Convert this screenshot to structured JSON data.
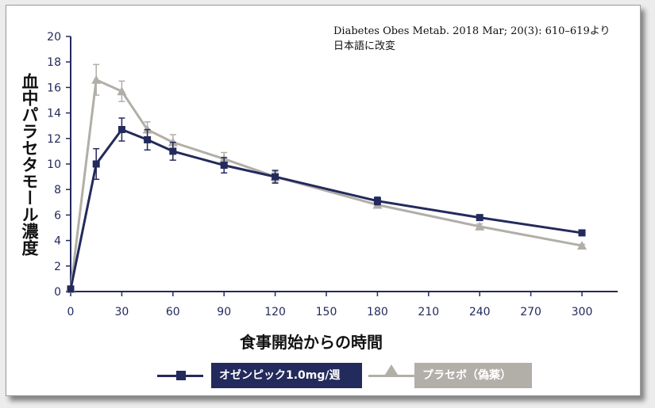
{
  "citation": "Diabetes Obes Metab. 2018 Mar; 20(3): 610–619より\n日本語に改変",
  "colors": {
    "navy": "#232a5c",
    "gray": "#b2aea8",
    "axis": "#232a5c",
    "tick_text": "#232a5c"
  },
  "chart_data": {
    "type": "line",
    "xlabel": "食事開始からの時間",
    "ylabel": "血中パラセタモール濃度",
    "x_ticks": [
      0,
      30,
      60,
      90,
      120,
      150,
      180,
      210,
      240,
      270,
      300
    ],
    "y_ticks": [
      0,
      2,
      4,
      6,
      8,
      10,
      12,
      14,
      16,
      18,
      20
    ],
    "xlim": [
      0,
      300
    ],
    "ylim": [
      0,
      20
    ],
    "grid": false,
    "legend_position": "bottom",
    "series": [
      {
        "name": "オゼンピック1.0mg/週",
        "color": "#232a5c",
        "marker": "square",
        "points": [
          {
            "x": 0,
            "y": 0.2,
            "err": 0
          },
          {
            "x": 15,
            "y": 10.0,
            "err": 1.2
          },
          {
            "x": 30,
            "y": 12.7,
            "err": 0.9
          },
          {
            "x": 45,
            "y": 11.9,
            "err": 0.8
          },
          {
            "x": 60,
            "y": 11.0,
            "err": 0.7
          },
          {
            "x": 90,
            "y": 9.9,
            "err": 0.6
          },
          {
            "x": 120,
            "y": 9.0,
            "err": 0.5
          },
          {
            "x": 180,
            "y": 7.1,
            "err": 0.3
          },
          {
            "x": 240,
            "y": 5.8,
            "err": 0.2
          },
          {
            "x": 300,
            "y": 4.6,
            "err": 0.1
          }
        ]
      },
      {
        "name": "プラセボ（偽薬）",
        "color": "#b2aea8",
        "marker": "triangle",
        "points": [
          {
            "x": 0,
            "y": 0.2,
            "err": 0
          },
          {
            "x": 15,
            "y": 16.6,
            "err": 1.2
          },
          {
            "x": 30,
            "y": 15.7,
            "err": 0.8
          },
          {
            "x": 45,
            "y": 12.7,
            "err": 0.6
          },
          {
            "x": 60,
            "y": 11.7,
            "err": 0.6
          },
          {
            "x": 90,
            "y": 10.4,
            "err": 0.5
          },
          {
            "x": 120,
            "y": 9.0,
            "err": 0.4
          },
          {
            "x": 180,
            "y": 6.8,
            "err": 0.2
          },
          {
            "x": 240,
            "y": 5.1,
            "err": 0.2
          },
          {
            "x": 300,
            "y": 3.6,
            "err": 0.1
          }
        ]
      }
    ]
  }
}
